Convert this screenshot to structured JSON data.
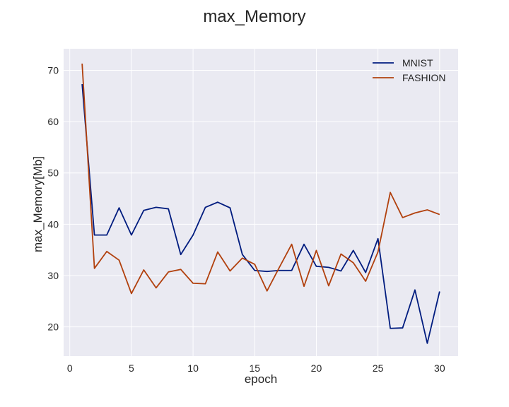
{
  "chart_data": {
    "type": "line",
    "title": "max_Memory",
    "xlabel": "epoch",
    "ylabel": "max_Memory[Mb]",
    "xlim": [
      -0.5,
      31.5
    ],
    "ylim": [
      14.3,
      74.2
    ],
    "xticks": [
      0,
      5,
      10,
      15,
      20,
      25,
      30
    ],
    "yticks": [
      20,
      30,
      40,
      50,
      60,
      70
    ],
    "grid": true,
    "legend_position": "top-right",
    "x": [
      1,
      2,
      3,
      4,
      5,
      6,
      7,
      8,
      9,
      10,
      11,
      12,
      13,
      14,
      15,
      16,
      17,
      18,
      19,
      20,
      21,
      22,
      23,
      24,
      25,
      26,
      27,
      28,
      29,
      30
    ],
    "series": [
      {
        "name": "MNIST",
        "color": "#001c7f",
        "values": [
          67.3,
          37.9,
          37.9,
          43.2,
          37.9,
          42.7,
          43.3,
          43.0,
          34.1,
          37.9,
          43.3,
          44.3,
          43.2,
          34.1,
          31.0,
          30.8,
          31.0,
          31.0,
          36.1,
          31.8,
          31.6,
          30.9,
          34.9,
          30.6,
          37.2,
          19.7,
          19.8,
          27.2,
          16.8,
          26.9
        ]
      },
      {
        "name": "FASHION",
        "color": "#b1400d",
        "values": [
          71.3,
          31.4,
          34.7,
          33.0,
          26.5,
          31.1,
          27.6,
          30.7,
          31.2,
          28.5,
          28.4,
          34.6,
          30.9,
          33.4,
          32.2,
          27.0,
          31.6,
          36.1,
          27.9,
          34.9,
          28.0,
          34.2,
          32.5,
          28.9,
          34.6,
          46.2,
          41.3,
          42.2,
          42.8,
          41.9
        ]
      }
    ]
  }
}
